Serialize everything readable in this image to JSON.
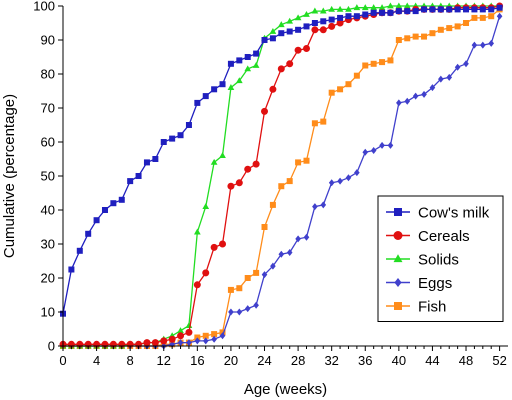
{
  "chart_data": {
    "type": "line",
    "title": "",
    "xlabel": "Age (weeks)",
    "ylabel": "Cumulative (percentage)",
    "xlim": [
      0,
      53
    ],
    "ylim": [
      0,
      100
    ],
    "xticks": [
      0,
      4,
      8,
      12,
      16,
      20,
      24,
      28,
      32,
      36,
      40,
      44,
      48,
      52
    ],
    "yticks": [
      0,
      10,
      20,
      30,
      40,
      50,
      60,
      70,
      80,
      90,
      100
    ],
    "grid": false,
    "legend": "bottom-right",
    "series": [
      {
        "name": "Cow's milk",
        "color": "#1f1fbf",
        "marker": "square",
        "x": [
          0,
          1,
          2,
          3,
          4,
          5,
          6,
          7,
          8,
          9,
          10,
          11,
          12,
          13,
          14,
          15,
          16,
          17,
          18,
          19,
          20,
          21,
          22,
          23,
          24,
          25,
          26,
          27,
          28,
          29,
          30,
          31,
          32,
          33,
          34,
          35,
          36,
          37,
          38,
          39,
          40,
          41,
          42,
          43,
          44,
          45,
          46,
          47,
          48,
          49,
          50,
          51,
          52
        ],
        "y": [
          9.5,
          22.5,
          28,
          33,
          37,
          40,
          42,
          43,
          48.5,
          50,
          54,
          55,
          60,
          61,
          62,
          65,
          71.5,
          73.5,
          75.5,
          77,
          83,
          84,
          85,
          86,
          90,
          90.5,
          92,
          92.5,
          93,
          94,
          95,
          95.5,
          96,
          96.5,
          97,
          97,
          97.5,
          98,
          98,
          98,
          98.5,
          98.5,
          98.5,
          99,
          99,
          99,
          99,
          99,
          99,
          99,
          99,
          99,
          99.5
        ]
      },
      {
        "name": "Cereals",
        "color": "#e01010",
        "marker": "circle",
        "x": [
          0,
          1,
          2,
          3,
          4,
          5,
          6,
          7,
          8,
          9,
          10,
          11,
          12,
          13,
          14,
          15,
          16,
          17,
          18,
          19,
          20,
          21,
          22,
          23,
          24,
          25,
          26,
          27,
          28,
          29,
          30,
          31,
          32,
          33,
          34,
          35,
          36,
          37,
          38,
          39,
          40,
          41,
          42,
          43,
          44,
          45,
          46,
          47,
          48,
          49,
          50,
          51,
          52
        ],
        "y": [
          0.5,
          0.5,
          0.5,
          0.5,
          0.5,
          0.5,
          0.5,
          0.5,
          0.5,
          0.5,
          1,
          1,
          1.5,
          2,
          3,
          4,
          18,
          21.5,
          29,
          30,
          47,
          48,
          52,
          53.5,
          69,
          75.5,
          81.5,
          83,
          87,
          87.5,
          93,
          93,
          94,
          95,
          96,
          96.5,
          97,
          97.5,
          98,
          98,
          98.5,
          98.5,
          99,
          99,
          99,
          99,
          99,
          99.5,
          99.5,
          99.5,
          99.5,
          99.5,
          100
        ]
      },
      {
        "name": "Solids",
        "color": "#22dd22",
        "marker": "triangle",
        "x": [
          0,
          1,
          2,
          3,
          4,
          5,
          6,
          7,
          8,
          9,
          10,
          11,
          12,
          13,
          14,
          15,
          16,
          17,
          18,
          19,
          20,
          21,
          22,
          23,
          24,
          25,
          26,
          27,
          28,
          29,
          30,
          31,
          32,
          33,
          34,
          35,
          36,
          37,
          38,
          39,
          40,
          41,
          42,
          43,
          44,
          45,
          46,
          47,
          48,
          49,
          50,
          51,
          52
        ],
        "y": [
          0,
          0,
          0,
          0,
          0,
          0,
          0,
          0,
          0.5,
          0.5,
          1,
          1,
          2,
          3,
          4.5,
          6,
          33.5,
          41,
          54,
          56,
          76,
          78,
          81.5,
          82.5,
          90.5,
          92.5,
          94.5,
          95.5,
          96.5,
          97.5,
          98.5,
          98.5,
          99,
          99,
          99,
          99.5,
          99.5,
          99.5,
          99.5,
          100,
          100,
          100,
          100,
          100,
          100,
          100,
          100,
          100,
          100,
          100,
          100,
          100,
          100
        ]
      },
      {
        "name": "Eggs",
        "color": "#4040cc",
        "marker": "diamond",
        "x": [
          0,
          1,
          2,
          3,
          4,
          5,
          6,
          7,
          8,
          9,
          10,
          11,
          12,
          13,
          14,
          15,
          16,
          17,
          18,
          19,
          20,
          21,
          22,
          23,
          24,
          25,
          26,
          27,
          28,
          29,
          30,
          31,
          32,
          33,
          34,
          35,
          36,
          37,
          38,
          39,
          40,
          41,
          42,
          43,
          44,
          45,
          46,
          47,
          48,
          49,
          50,
          51,
          52
        ],
        "y": [
          0,
          0,
          0,
          0,
          0,
          0,
          0,
          0,
          0,
          0,
          0,
          0,
          0,
          0.5,
          1,
          1,
          1.5,
          1.5,
          2,
          3,
          10,
          10,
          11,
          12,
          21,
          23.5,
          27,
          27.5,
          31.5,
          32,
          41,
          41.5,
          48,
          48.5,
          49.5,
          51,
          57,
          57.5,
          59,
          59,
          71.5,
          72,
          73.5,
          74,
          76,
          78.5,
          79,
          82,
          83,
          88.5,
          88.5,
          89,
          97
        ]
      },
      {
        "name": "Fish",
        "color": "#ff8c1a",
        "marker": "square",
        "x": [
          0,
          1,
          2,
          3,
          4,
          5,
          6,
          7,
          8,
          9,
          10,
          11,
          12,
          13,
          14,
          15,
          16,
          17,
          18,
          19,
          20,
          21,
          22,
          23,
          24,
          25,
          26,
          27,
          28,
          29,
          30,
          31,
          32,
          33,
          34,
          35,
          36,
          37,
          38,
          39,
          40,
          41,
          42,
          43,
          44,
          45,
          46,
          47,
          48,
          49,
          50,
          51,
          52
        ],
        "y": [
          0,
          0,
          0,
          0,
          0,
          0,
          0,
          0,
          0,
          0,
          0,
          0,
          0.5,
          0.5,
          1,
          1,
          2.5,
          3,
          3.5,
          4,
          16.5,
          17,
          20,
          21.5,
          35,
          41.5,
          47,
          48.5,
          54,
          54.5,
          65.5,
          66,
          74.5,
          75.5,
          77,
          79.5,
          82.5,
          83,
          83.5,
          84,
          90,
          90.5,
          91,
          91,
          92,
          93,
          93.5,
          94,
          95,
          96.5,
          96.5,
          97,
          99
        ]
      }
    ]
  }
}
